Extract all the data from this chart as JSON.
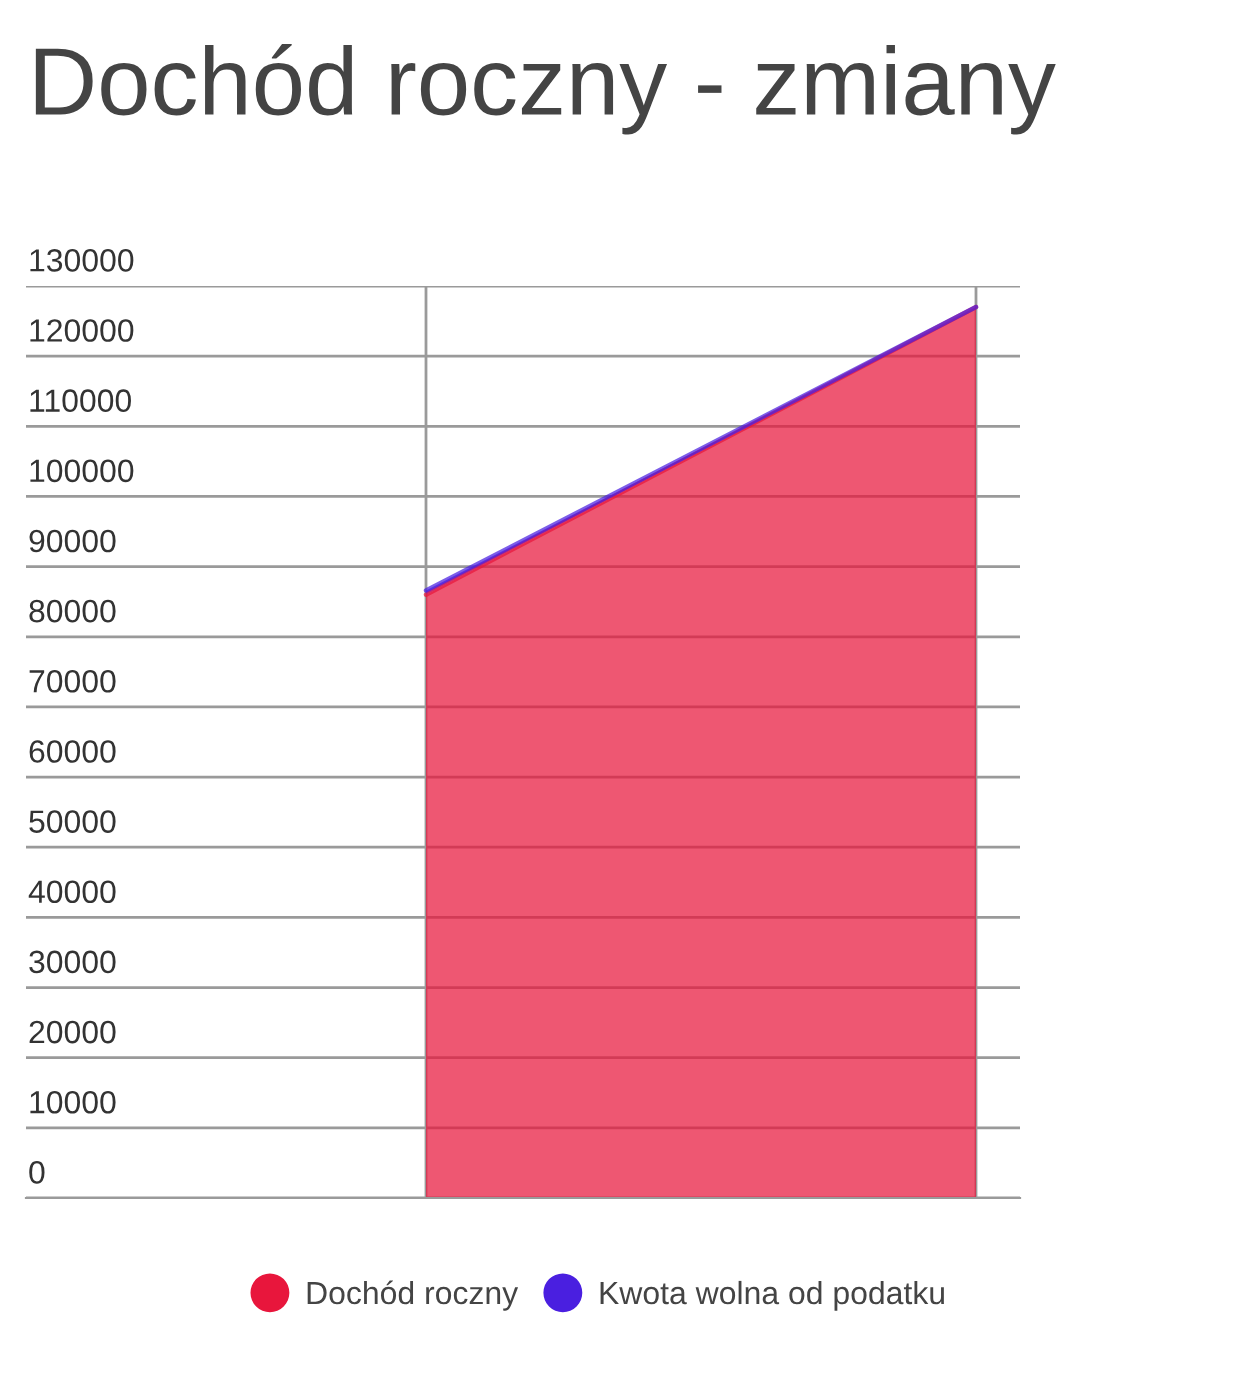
{
  "chart_data": {
    "type": "area",
    "title": "Dochód roczny - zmiany",
    "categories": [
      null,
      null
    ],
    "stacked": true,
    "series": [
      {
        "name": "Dochód roczny",
        "color": "#e8163c",
        "values": [
          86000,
          127000
        ]
      },
      {
        "name": "Kwota wolna od podatku",
        "color": "#4a1fe0",
        "values": [
          600,
          0
        ]
      }
    ],
    "ylim": [
      0,
      130000
    ],
    "yticks": [
      0,
      10000,
      20000,
      30000,
      40000,
      50000,
      60000,
      70000,
      80000,
      90000,
      100000,
      110000,
      120000,
      130000
    ],
    "grid": true,
    "legend": "bottom"
  }
}
